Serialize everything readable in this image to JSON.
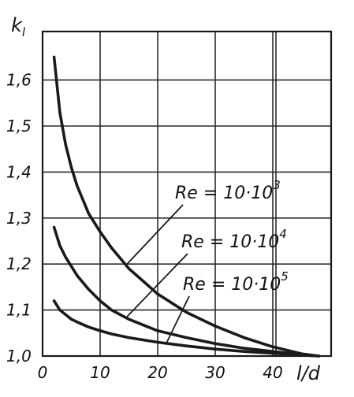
{
  "chart_data": {
    "type": "line",
    "ylabel_main": "k",
    "ylabel_sub": "l",
    "xlabel": "l/d",
    "xlim": [
      0,
      48
    ],
    "ylim": [
      1.0,
      1.7
    ],
    "grid": true,
    "xticks": [
      0,
      10,
      20,
      30,
      40
    ],
    "xtick_labels": [
      "0",
      "10",
      "20",
      "30",
      "40"
    ],
    "yticks": [
      1.0,
      1.1,
      1.2,
      1.3,
      1.4,
      1.5,
      1.6
    ],
    "ytick_labels": [
      "1,0",
      "1,1",
      "1,2",
      "1,3",
      "1,4",
      "1,5",
      "1,6"
    ],
    "series": [
      {
        "name": "Re = 10·10^3",
        "label_parts": {
          "prefix": "Re = 10·10",
          "exp": "3"
        },
        "x": [
          2,
          3,
          4,
          5,
          6,
          8,
          10,
          12,
          15,
          20,
          25,
          30,
          35,
          40,
          45,
          48
        ],
        "y": [
          1.65,
          1.53,
          1.46,
          1.41,
          1.37,
          1.31,
          1.27,
          1.235,
          1.19,
          1.135,
          1.095,
          1.065,
          1.04,
          1.02,
          1.005,
          1.0
        ]
      },
      {
        "name": "Re = 10·10^4",
        "label_parts": {
          "prefix": "Re = 10·10",
          "exp": "4"
        },
        "x": [
          2,
          3,
          4,
          5,
          6,
          8,
          10,
          12,
          15,
          20,
          25,
          30,
          35,
          40,
          45,
          48
        ],
        "y": [
          1.28,
          1.24,
          1.215,
          1.195,
          1.175,
          1.145,
          1.12,
          1.1,
          1.08,
          1.055,
          1.04,
          1.027,
          1.017,
          1.01,
          1.003,
          1.0
        ]
      },
      {
        "name": "Re = 10·10^5",
        "label_parts": {
          "prefix": "Re = 10·10",
          "exp": "5"
        },
        "x": [
          2,
          3,
          4,
          5,
          6,
          8,
          10,
          12,
          15,
          20,
          25,
          30,
          35,
          40,
          45,
          48
        ],
        "y": [
          1.12,
          1.1,
          1.09,
          1.08,
          1.074,
          1.063,
          1.055,
          1.048,
          1.04,
          1.03,
          1.022,
          1.015,
          1.01,
          1.006,
          1.002,
          1.0
        ]
      }
    ]
  }
}
